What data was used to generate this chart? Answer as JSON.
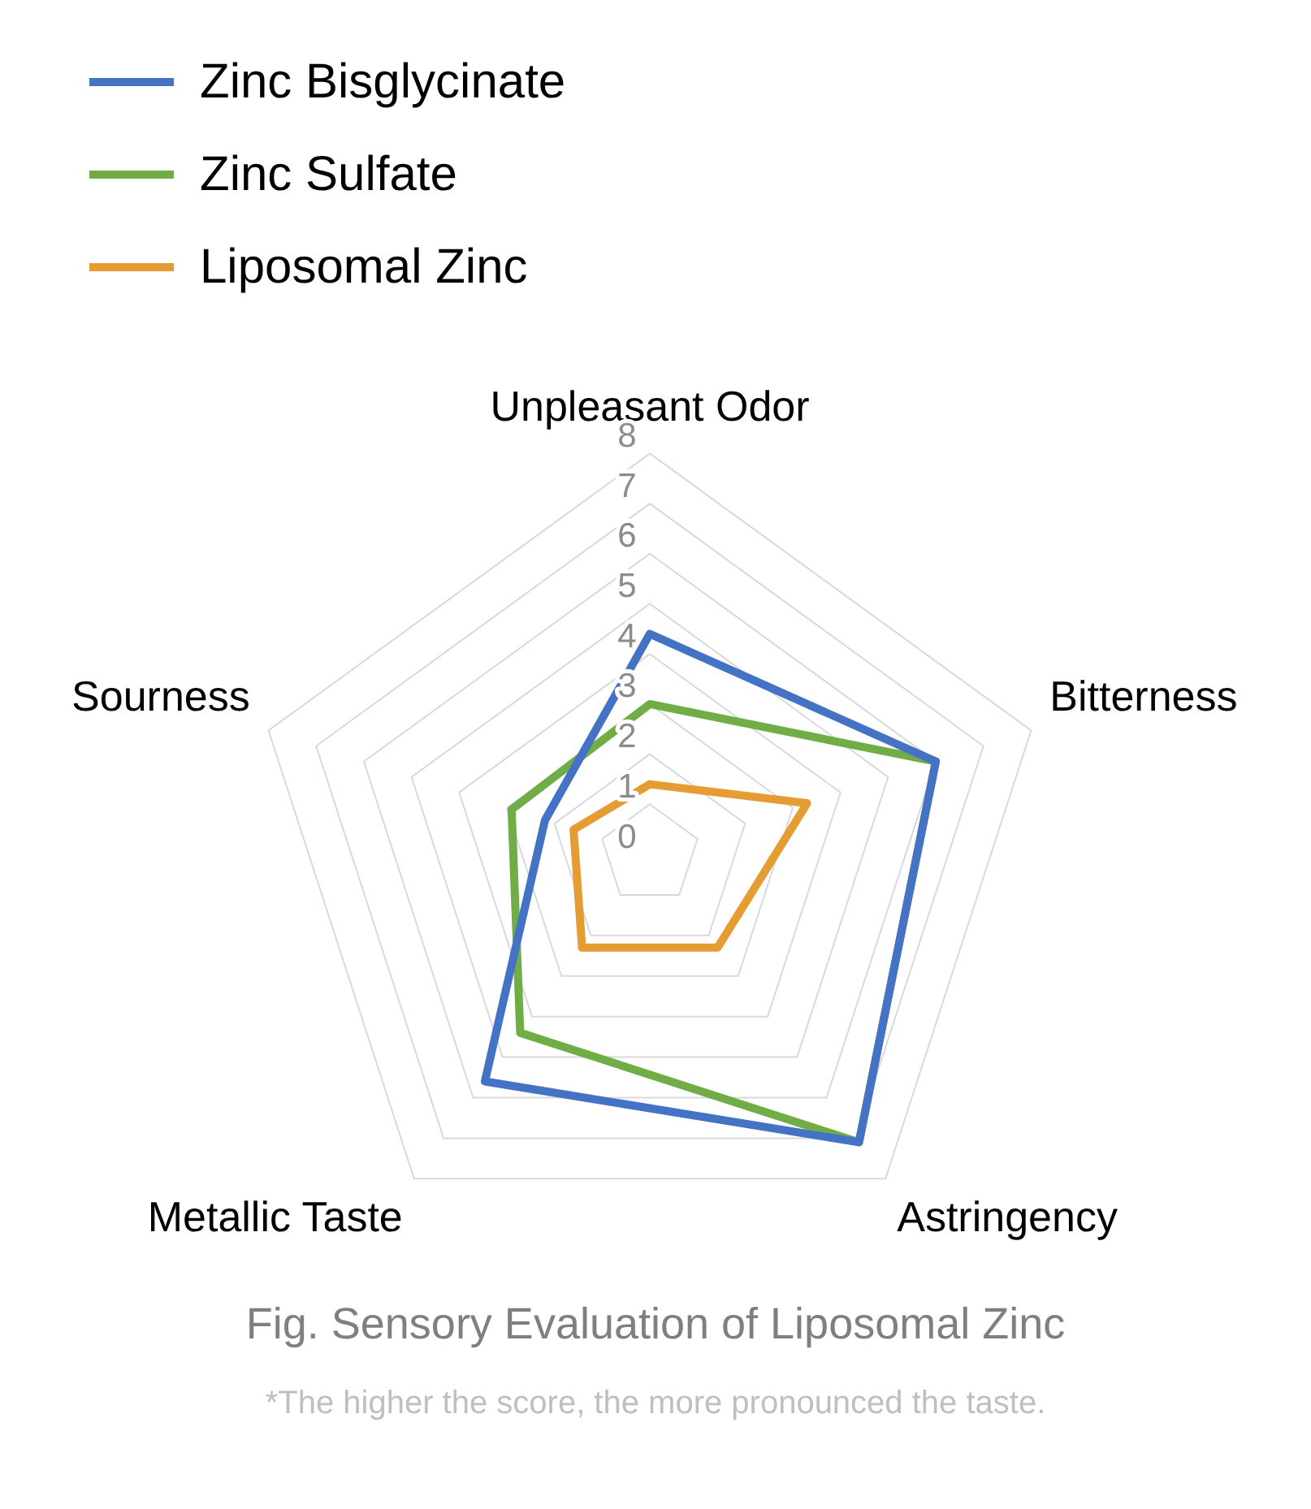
{
  "chart_data": {
    "type": "radar",
    "title": "Fig. Sensory Evaluation of Liposomal Zinc",
    "annotations": [
      "*The higher the score, the more pronounced the taste."
    ],
    "categories": [
      "Unpleasant Odor",
      "Bitterness",
      "Astringency",
      "Metallic Taste",
      "Sourness"
    ],
    "series": [
      {
        "name": "Zinc Bisglycinate",
        "color": "#4472c4",
        "values": [
          4.4,
          6.0,
          7.1,
          5.6,
          2.2
        ]
      },
      {
        "name": "Zinc Sulfate",
        "color": "#70ad47",
        "values": [
          3.0,
          6.0,
          7.1,
          4.4,
          2.9
        ]
      },
      {
        "name": "Liposomal Zinc",
        "color": "#e59c32",
        "values": [
          1.4,
          3.3,
          2.3,
          2.3,
          1.6
        ]
      }
    ],
    "ylim": [
      0,
      8
    ],
    "yticks": [
      0,
      1,
      2,
      3,
      4,
      5,
      6,
      7,
      8
    ],
    "grid": true,
    "legend": "top left"
  }
}
